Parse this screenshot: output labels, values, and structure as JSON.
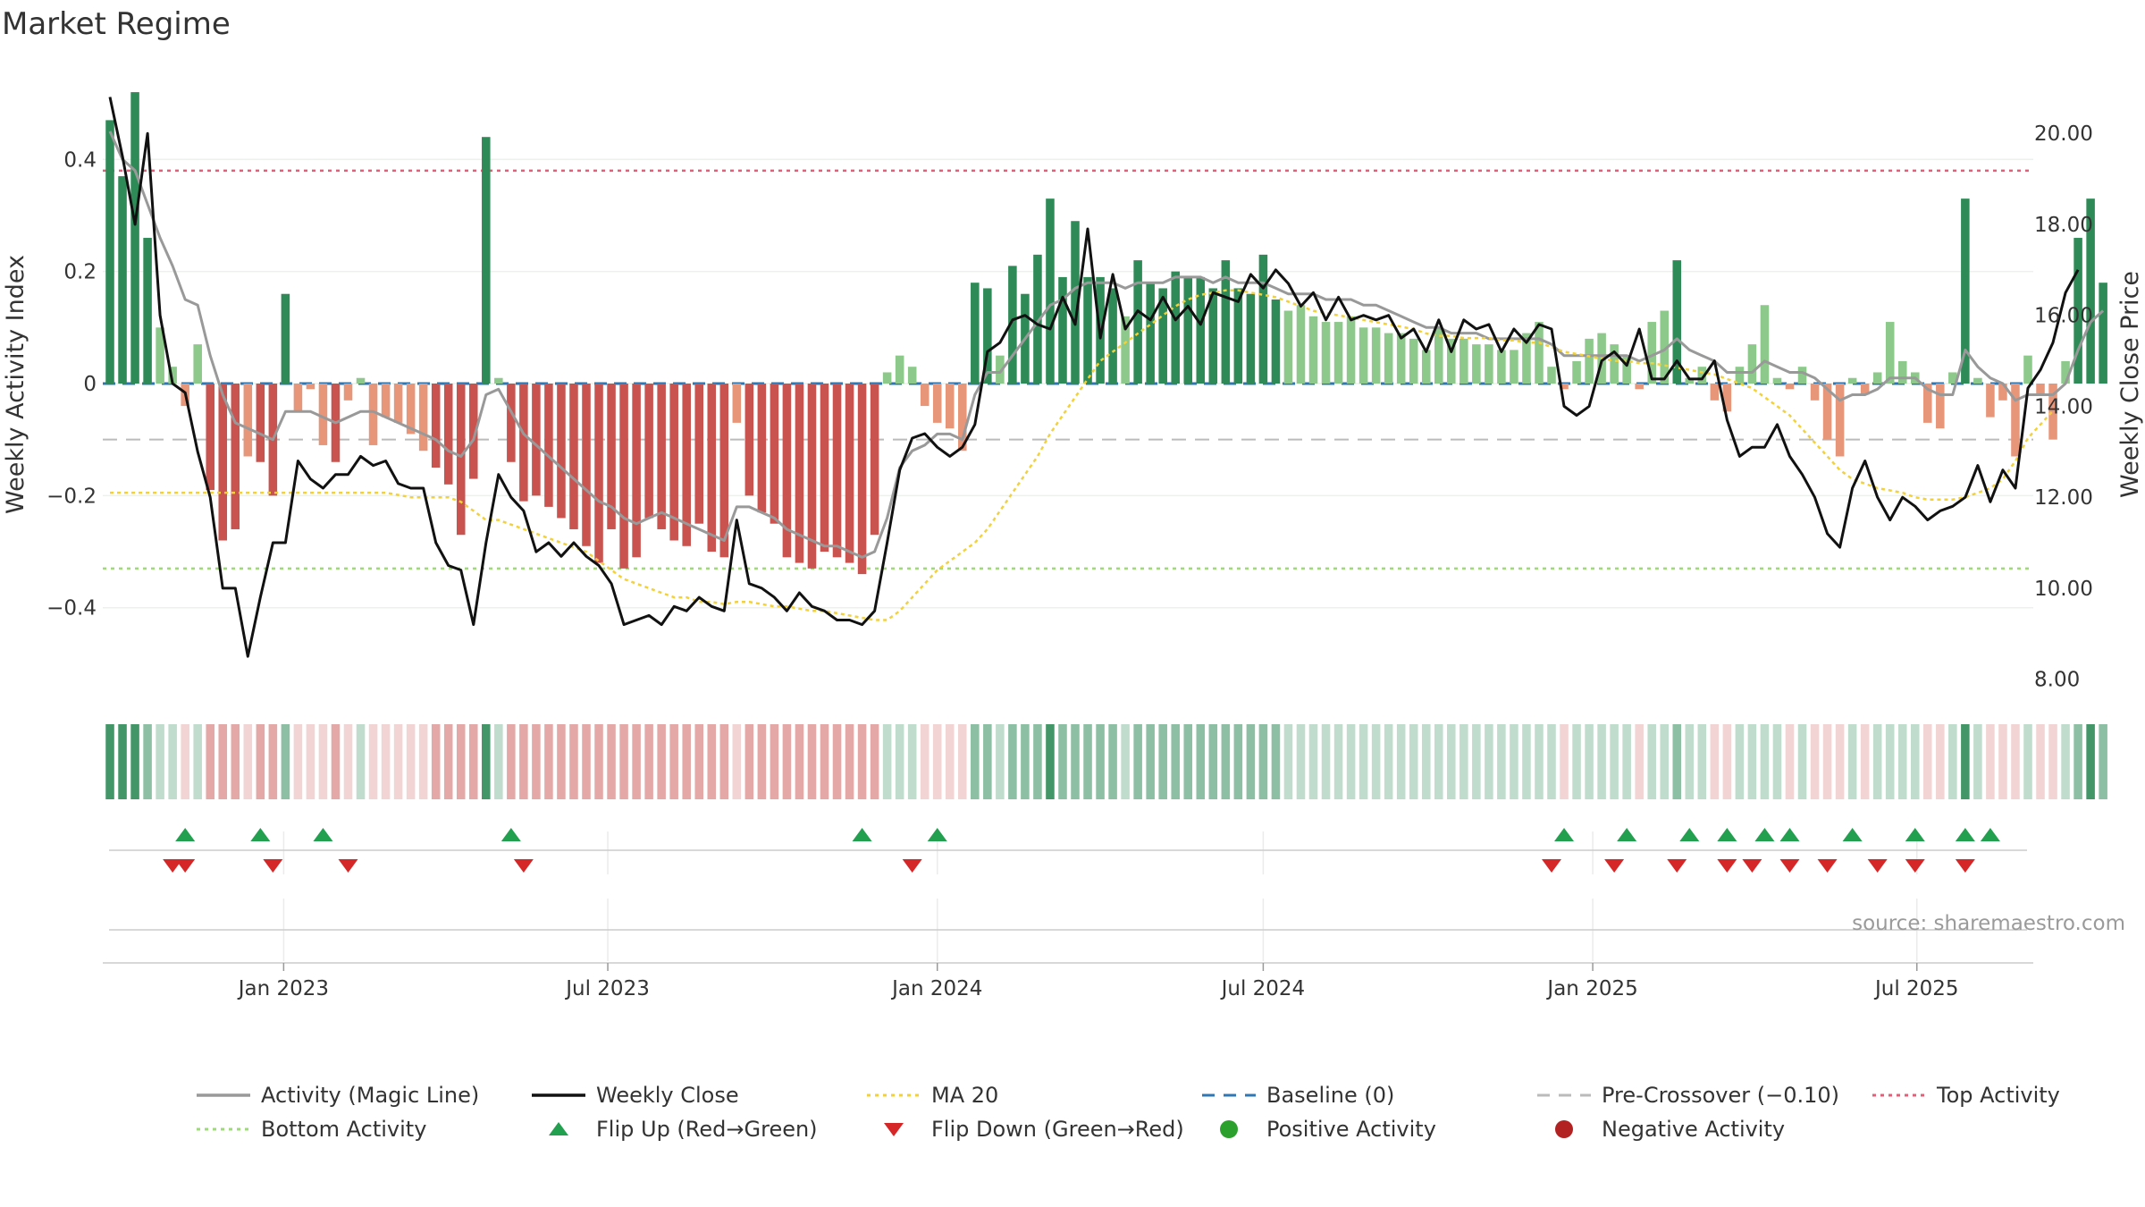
{
  "title": "Market Regime",
  "source": "source: sharemaestro.com",
  "colors": {
    "bar_pos_strong": "#2e8b57",
    "bar_pos_weak": "#8cc98a",
    "bar_neg_strong": "#c9534f",
    "bar_neg_weak": "#e8967a",
    "magic_line": "#999999",
    "weekly_close": "#111111",
    "ma20": "#f2d13a",
    "baseline": "#2f77b4",
    "pre_crossover": "#bbbbbb",
    "top_activity": "#e0607a",
    "bottom_activity": "#9ed97a",
    "flip_up": "#22a050",
    "flip_down": "#d62728",
    "positive_dot": "#2ca02c",
    "negative_dot": "#b22222"
  },
  "legend": [
    {
      "key": "magic",
      "label": "Activity (Magic Line)",
      "style": "line",
      "color": "#999999"
    },
    {
      "key": "close",
      "label": "Weekly Close",
      "style": "line",
      "color": "#111111"
    },
    {
      "key": "ma20",
      "label": "MA 20",
      "style": "dotted",
      "color": "#f2d13a"
    },
    {
      "key": "baseline",
      "label": "Baseline (0)",
      "style": "dashed",
      "color": "#2f77b4"
    },
    {
      "key": "pre",
      "label": "Pre-Crossover (−0.10)",
      "style": "dashed",
      "color": "#bbbbbb"
    },
    {
      "key": "top",
      "label": "Top Activity",
      "style": "dotted",
      "color": "#e0607a"
    },
    {
      "key": "bottom",
      "label": "Bottom Activity",
      "style": "dotted",
      "color": "#9ed97a"
    },
    {
      "key": "flipup",
      "label": "Flip Up (Red→Green)",
      "style": "tri-up",
      "color": "#22a050"
    },
    {
      "key": "flipdown",
      "label": "Flip Down (Green→Red)",
      "style": "tri-down",
      "color": "#d62728"
    },
    {
      "key": "posdot",
      "label": "Positive Activity",
      "style": "dot",
      "color": "#2ca02c"
    },
    {
      "key": "negdot",
      "label": "Negative Activity",
      "style": "dot",
      "color": "#b22222"
    }
  ],
  "chart_data": {
    "type": "bar",
    "x_start": "2022-09-26",
    "x_step_days": 7,
    "xlim": [
      "2022-09-22",
      "2025-09-04"
    ],
    "x_ticks": [
      {
        "date": "2023-01-01",
        "label": "Jan 2023"
      },
      {
        "date": "2023-07-01",
        "label": "Jul 2023"
      },
      {
        "date": "2024-01-01",
        "label": "Jan 2024"
      },
      {
        "date": "2024-07-01",
        "label": "Jul 2024"
      },
      {
        "date": "2025-01-01",
        "label": "Jan 2025"
      },
      {
        "date": "2025-07-01",
        "label": "Jul 2025"
      }
    ],
    "y_left": {
      "label": "Weekly Activity Index",
      "lim": [
        -0.56,
        0.56
      ],
      "ticks": [
        -0.4,
        -0.2,
        0,
        0.2,
        0.4
      ],
      "tick_labels": [
        "−0.4",
        "−0.2",
        "0",
        "0.2",
        "0.4"
      ]
    },
    "y_right": {
      "label": "Weekly Close Price",
      "lim": [
        7.6,
        21.4
      ],
      "ticks": [
        8,
        10,
        12,
        14,
        16,
        18,
        20
      ],
      "tick_labels": [
        "8.00",
        "10.00",
        "12.00",
        "14.00",
        "16.00",
        "18.00",
        "20.00"
      ]
    },
    "thresholds": {
      "top": 0.38,
      "bottom": -0.33,
      "pre_crossover": -0.1,
      "baseline": 0
    },
    "activity": [
      0.47,
      0.37,
      0.52,
      0.26,
      0.1,
      0.03,
      -0.04,
      0.07,
      -0.19,
      -0.28,
      -0.26,
      -0.13,
      -0.14,
      -0.2,
      0.16,
      -0.05,
      -0.01,
      -0.11,
      -0.14,
      -0.03,
      0.01,
      -0.11,
      -0.06,
      -0.07,
      -0.09,
      -0.12,
      -0.15,
      -0.18,
      -0.27,
      -0.17,
      0.44,
      0.01,
      -0.14,
      -0.21,
      -0.2,
      -0.22,
      -0.24,
      -0.26,
      -0.29,
      -0.32,
      -0.26,
      -0.33,
      -0.31,
      -0.24,
      -0.26,
      -0.28,
      -0.29,
      -0.25,
      -0.3,
      -0.31,
      -0.07,
      -0.2,
      -0.23,
      -0.25,
      -0.31,
      -0.32,
      -0.33,
      -0.3,
      -0.31,
      -0.32,
      -0.34,
      -0.27,
      0.02,
      0.05,
      0.03,
      -0.04,
      -0.07,
      -0.08,
      -0.12,
      0.18,
      0.17,
      0.05,
      0.21,
      0.16,
      0.23,
      0.33,
      0.19,
      0.29,
      0.19,
      0.19,
      0.17,
      0.12,
      0.22,
      0.18,
      0.17,
      0.2,
      0.19,
      0.19,
      0.17,
      0.22,
      0.17,
      0.16,
      0.23,
      0.15,
      0.13,
      0.14,
      0.12,
      0.11,
      0.11,
      0.12,
      0.1,
      0.1,
      0.09,
      0.09,
      0.08,
      0.06,
      0.1,
      0.08,
      0.08,
      0.07,
      0.07,
      0.06,
      0.06,
      0.09,
      0.11,
      0.03,
      -0.01,
      0.04,
      0.08,
      0.09,
      0.07,
      0.05,
      -0.01,
      0.11,
      0.13,
      0.22,
      0.01,
      0.03,
      -0.03,
      -0.05,
      0.03,
      0.07,
      0.14,
      0.01,
      -0.01,
      0.03,
      -0.03,
      -0.1,
      -0.13,
      0.01,
      -0.02,
      0.02,
      0.11,
      0.04,
      0.02,
      -0.07,
      -0.08,
      0.02,
      0.33,
      0.01,
      -0.06,
      -0.03,
      -0.13,
      0.05,
      -0.02,
      -0.1,
      0.04,
      0.26,
      0.33,
      0.18
    ],
    "magic_line": [
      0.45,
      0.4,
      0.38,
      0.32,
      0.26,
      0.21,
      0.15,
      0.14,
      0.05,
      -0.02,
      -0.07,
      -0.08,
      -0.09,
      -0.1,
      -0.05,
      -0.05,
      -0.05,
      -0.06,
      -0.07,
      -0.06,
      -0.05,
      -0.05,
      -0.06,
      -0.07,
      -0.08,
      -0.09,
      -0.1,
      -0.12,
      -0.13,
      -0.1,
      -0.02,
      -0.01,
      -0.05,
      -0.09,
      -0.11,
      -0.13,
      -0.15,
      -0.17,
      -0.19,
      -0.21,
      -0.22,
      -0.24,
      -0.25,
      -0.24,
      -0.23,
      -0.24,
      -0.25,
      -0.26,
      -0.27,
      -0.28,
      -0.22,
      -0.22,
      -0.23,
      -0.24,
      -0.26,
      -0.27,
      -0.28,
      -0.29,
      -0.29,
      -0.3,
      -0.31,
      -0.3,
      -0.24,
      -0.15,
      -0.12,
      -0.11,
      -0.09,
      -0.09,
      -0.1,
      -0.02,
      0.02,
      0.02,
      0.05,
      0.08,
      0.11,
      0.14,
      0.15,
      0.17,
      0.18,
      0.18,
      0.18,
      0.17,
      0.18,
      0.18,
      0.18,
      0.19,
      0.19,
      0.19,
      0.18,
      0.19,
      0.18,
      0.18,
      0.18,
      0.17,
      0.16,
      0.16,
      0.16,
      0.15,
      0.15,
      0.15,
      0.14,
      0.14,
      0.13,
      0.12,
      0.11,
      0.1,
      0.1,
      0.09,
      0.09,
      0.09,
      0.08,
      0.08,
      0.08,
      0.08,
      0.08,
      0.07,
      0.05,
      0.05,
      0.05,
      0.05,
      0.05,
      0.05,
      0.04,
      0.05,
      0.06,
      0.08,
      0.06,
      0.05,
      0.04,
      0.02,
      0.02,
      0.02,
      0.04,
      0.03,
      0.02,
      0.02,
      0.01,
      -0.01,
      -0.03,
      -0.02,
      -0.02,
      -0.01,
      0.01,
      0.01,
      0.01,
      -0.01,
      -0.02,
      -0.02,
      0.06,
      0.03,
      0.01,
      0.0,
      -0.03,
      -0.02,
      -0.02,
      -0.02,
      0.0,
      0.06,
      0.11,
      0.13
    ],
    "weekly_close": [
      20.8,
      19.5,
      18.0,
      20.0,
      16.0,
      14.5,
      14.3,
      13.0,
      12.0,
      10.0,
      10.0,
      8.5,
      9.8,
      11.0,
      11.0,
      12.8,
      12.4,
      12.2,
      12.5,
      12.5,
      12.9,
      12.7,
      12.8,
      12.3,
      12.2,
      12.2,
      11.0,
      10.5,
      10.4,
      9.2,
      11.0,
      12.5,
      12.0,
      11.7,
      10.8,
      11.0,
      10.7,
      11.0,
      10.7,
      10.5,
      10.1,
      9.2,
      9.3,
      9.4,
      9.2,
      9.6,
      9.5,
      9.8,
      9.6,
      9.5,
      11.5,
      10.1,
      10.0,
      9.8,
      9.5,
      9.9,
      9.6,
      9.5,
      9.3,
      9.3,
      9.2,
      9.5,
      11.0,
      12.6,
      13.3,
      13.4,
      13.1,
      12.9,
      13.1,
      13.6,
      15.2,
      15.4,
      15.9,
      16.0,
      15.8,
      15.7,
      16.4,
      15.8,
      17.9,
      15.5,
      16.9,
      15.7,
      16.1,
      15.9,
      16.4,
      15.9,
      16.2,
      15.8,
      16.5,
      16.4,
      16.3,
      16.9,
      16.6,
      17.0,
      16.7,
      16.2,
      16.5,
      15.9,
      16.4,
      15.9,
      16.0,
      15.9,
      16.0,
      15.5,
      15.7,
      15.2,
      15.9,
      15.2,
      15.9,
      15.7,
      15.8,
      15.2,
      15.7,
      15.4,
      15.8,
      15.7,
      14.0,
      13.8,
      14.0,
      15.0,
      15.2,
      14.9,
      15.7,
      14.6,
      14.6,
      15.0,
      14.6,
      14.6,
      15.0,
      13.7,
      12.9,
      13.1,
      13.1,
      13.6,
      12.9,
      12.5,
      12.0,
      11.2,
      10.9,
      12.2,
      12.8,
      12.0,
      11.5,
      12.0,
      11.8,
      11.5,
      11.7,
      11.8,
      12.0,
      12.7,
      11.9,
      12.6,
      12.2,
      14.4,
      14.8,
      15.4,
      16.5,
      17.0
    ],
    "ma20": [
      12.1,
      12.1,
      12.1,
      12.1,
      12.1,
      12.1,
      12.1,
      12.1,
      12.1,
      12.1,
      12.1,
      12.1,
      12.1,
      12.1,
      12.1,
      12.1,
      12.1,
      12.1,
      12.1,
      12.1,
      12.1,
      12.1,
      12.1,
      12.05,
      12.0,
      12.0,
      12.0,
      12.0,
      11.9,
      11.7,
      11.5,
      11.5,
      11.4,
      11.3,
      11.2,
      11.1,
      11.0,
      10.9,
      10.8,
      10.6,
      10.4,
      10.2,
      10.1,
      10.0,
      9.9,
      9.8,
      9.8,
      9.7,
      9.7,
      9.65,
      9.7,
      9.7,
      9.65,
      9.6,
      9.6,
      9.55,
      9.5,
      9.5,
      9.45,
      9.4,
      9.35,
      9.3,
      9.3,
      9.5,
      9.8,
      10.1,
      10.4,
      10.6,
      10.8,
      11.0,
      11.3,
      11.7,
      12.1,
      12.5,
      12.9,
      13.4,
      13.8,
      14.2,
      14.6,
      15.0,
      15.2,
      15.4,
      15.6,
      15.8,
      16.0,
      16.2,
      16.35,
      16.45,
      16.5,
      16.55,
      16.55,
      16.5,
      16.45,
      16.4,
      16.3,
      16.2,
      16.1,
      16.05,
      16.0,
      15.95,
      15.9,
      15.85,
      15.8,
      15.75,
      15.7,
      15.6,
      15.55,
      15.55,
      15.5,
      15.5,
      15.5,
      15.45,
      15.45,
      15.4,
      15.4,
      15.3,
      15.2,
      15.15,
      15.1,
      15.05,
      15.0,
      15.0,
      14.95,
      14.95,
      14.9,
      14.85,
      14.8,
      14.75,
      14.7,
      14.6,
      14.5,
      14.4,
      14.2,
      14.0,
      13.8,
      13.5,
      13.2,
      12.9,
      12.6,
      12.4,
      12.3,
      12.2,
      12.15,
      12.1,
      12.0,
      11.95,
      11.95,
      11.95,
      12.0,
      12.1,
      12.2,
      12.4,
      12.8,
      13.3,
      13.6,
      13.9
    ],
    "flip_up": [
      "2022-11-07",
      "2022-12-19",
      "2023-01-23",
      "2023-05-08",
      "2023-11-20",
      "2024-01-01",
      "2024-12-16",
      "2025-01-20",
      "2025-02-24",
      "2025-03-17",
      "2025-04-07",
      "2025-04-21",
      "2025-05-26",
      "2025-06-30",
      "2025-07-28",
      "2025-08-11"
    ],
    "flip_down": [
      "2022-10-31",
      "2022-11-07",
      "2022-12-26",
      "2023-02-06",
      "2023-05-15",
      "2023-12-18",
      "2024-12-09",
      "2025-01-13",
      "2025-02-17",
      "2025-03-17",
      "2025-03-31",
      "2025-04-21",
      "2025-05-12",
      "2025-06-09",
      "2025-06-30",
      "2025-07-28"
    ]
  }
}
